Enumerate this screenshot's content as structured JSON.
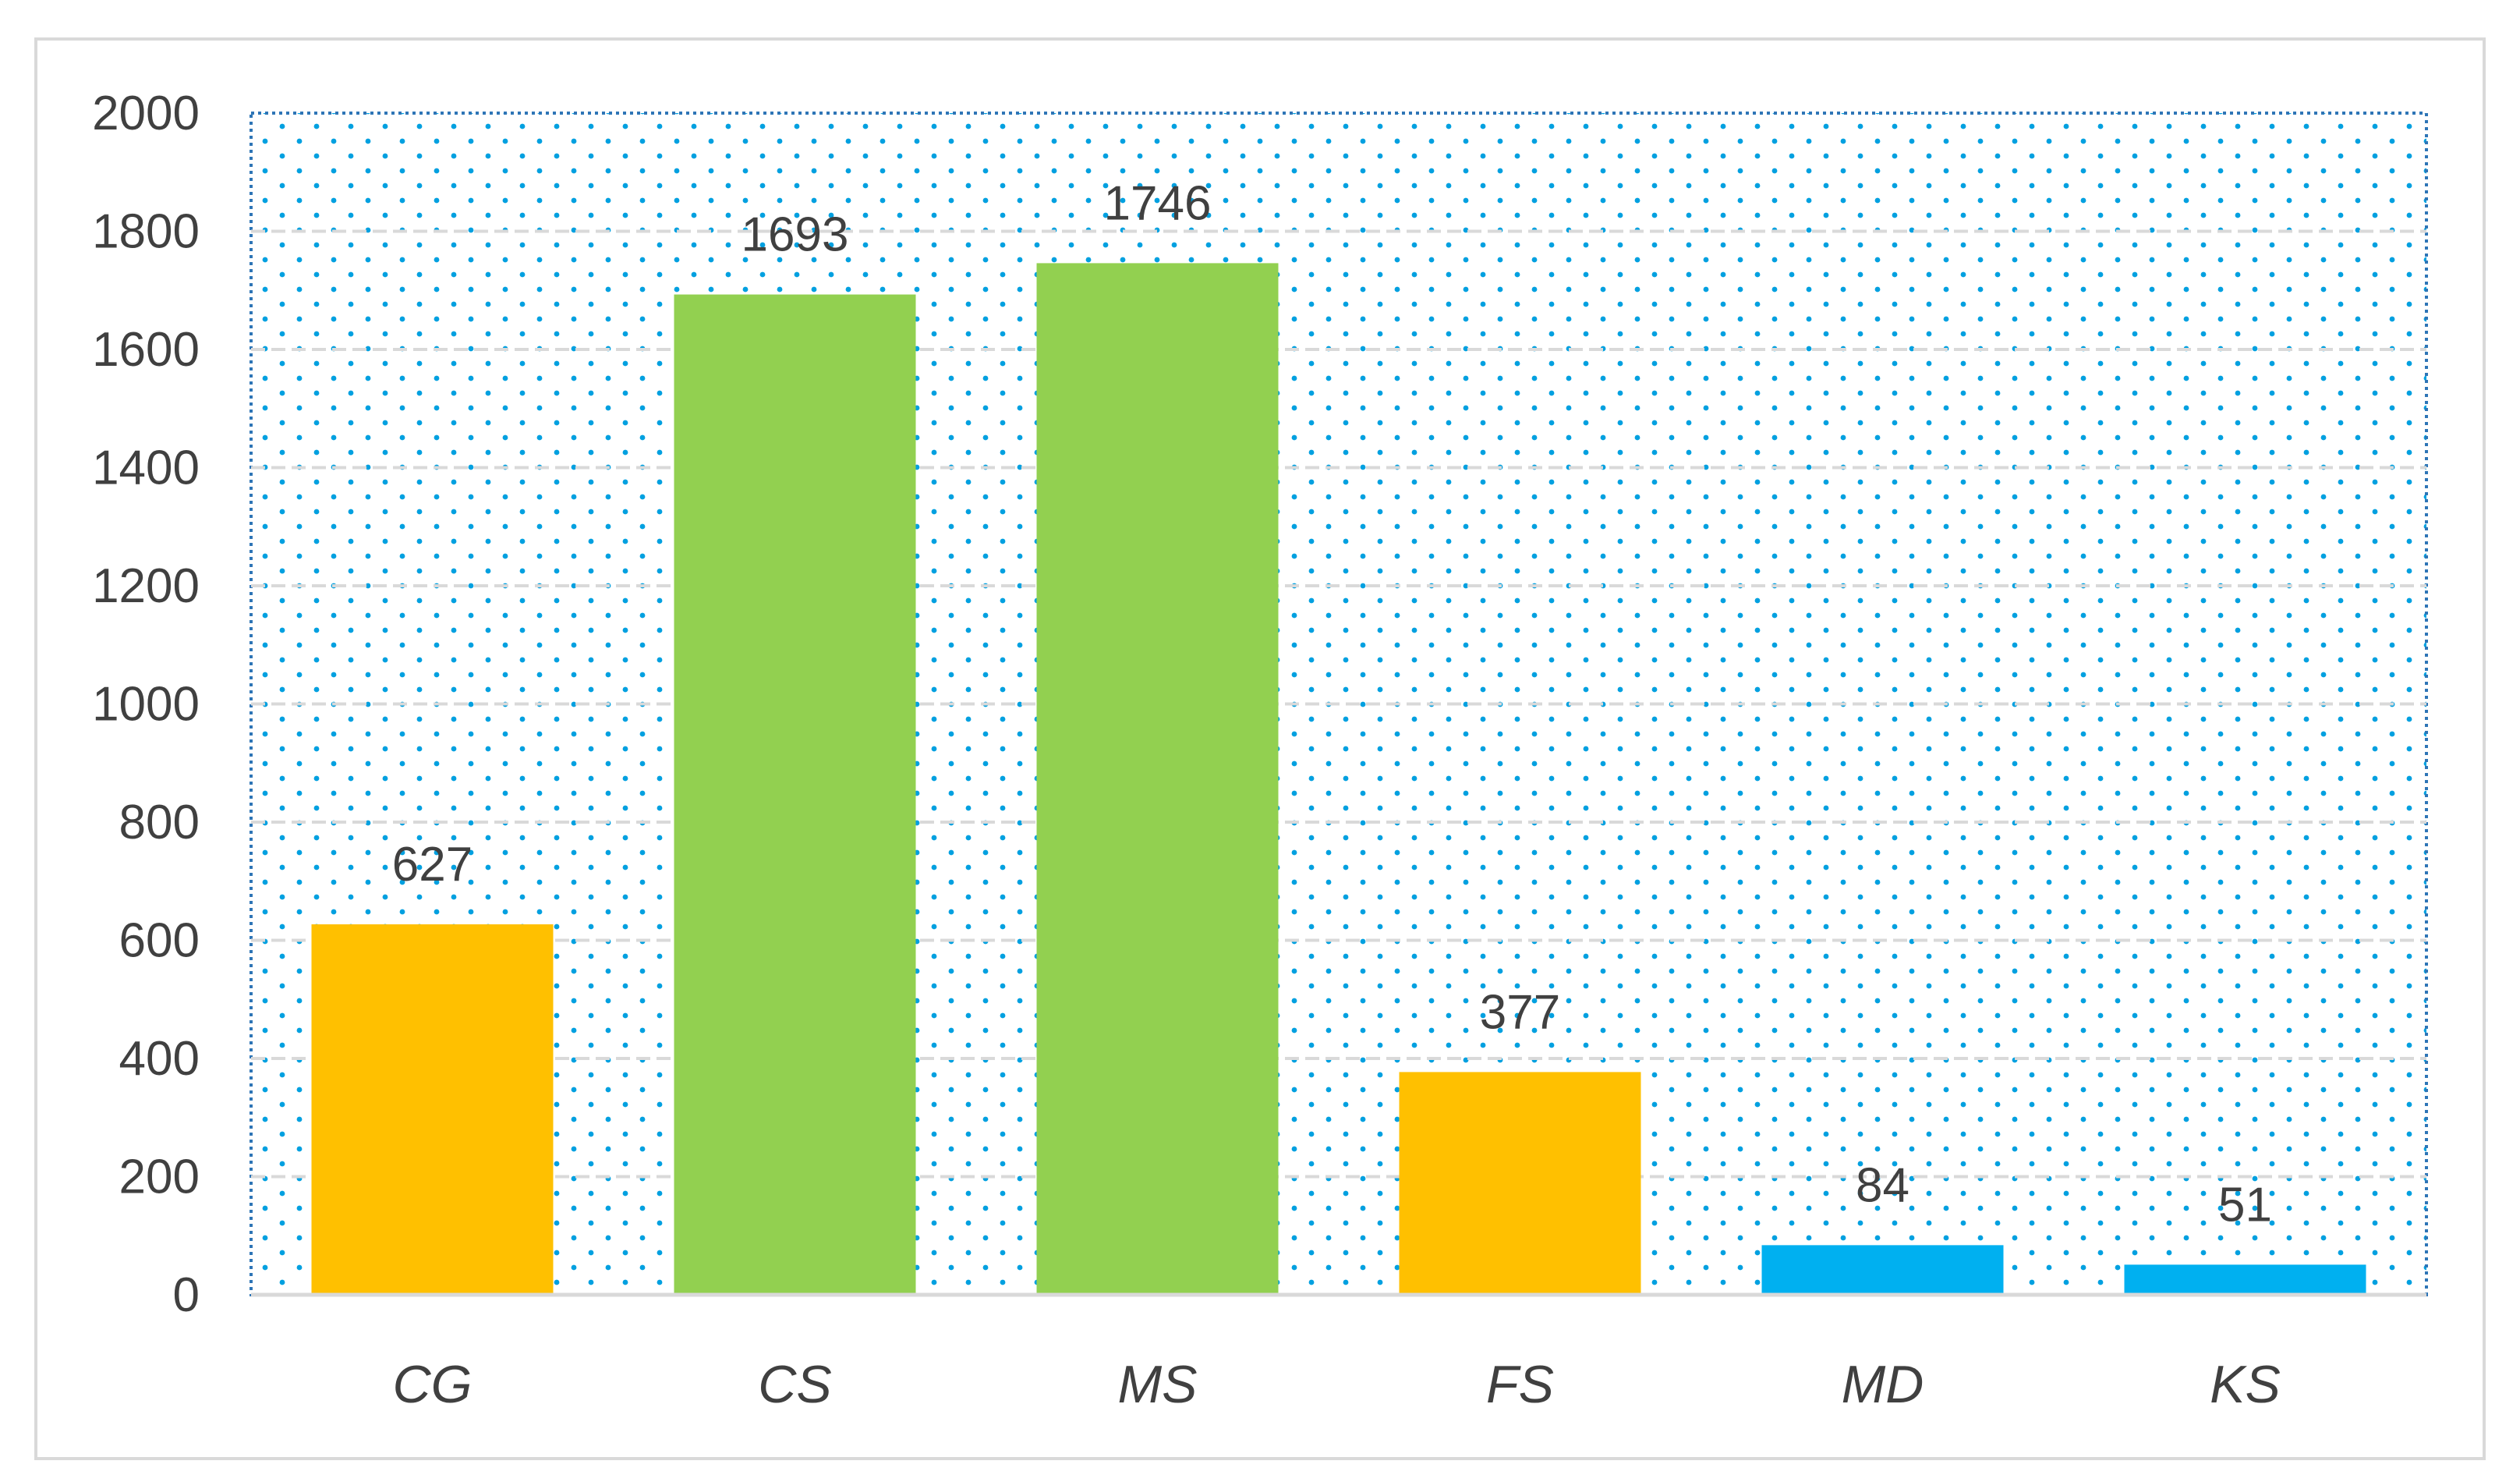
{
  "chart_data": {
    "type": "bar",
    "categories": [
      "CG",
      "CS",
      "MS",
      "FS",
      "MD",
      "KS"
    ],
    "values": [
      627,
      1693,
      1746,
      377,
      84,
      51
    ],
    "data_labels": [
      "627",
      "1693",
      "1746",
      "377",
      "84",
      "51"
    ],
    "bar_colors": [
      "#FFC000",
      "#92D050",
      "#92D050",
      "#FFC000",
      "#00B0F0",
      "#00B0F0"
    ],
    "ylim": [
      0,
      2000
    ],
    "yticks": [
      0,
      200,
      400,
      600,
      800,
      1000,
      1200,
      1400,
      1600,
      1800,
      2000
    ],
    "ytick_labels": [
      "0",
      "200",
      "400",
      "600",
      "800",
      "1000",
      "1200",
      "1400",
      "1600",
      "1800",
      "2000"
    ],
    "title": "",
    "xlabel": "",
    "ylabel": "",
    "grid": true,
    "legend": "none",
    "plot_background": "dotted",
    "dot_color": "#00A0E0",
    "gridline_color": "#D9D9D9",
    "frame_color": "#D9D9D9",
    "plot_border_color": "#2E75B6"
  }
}
